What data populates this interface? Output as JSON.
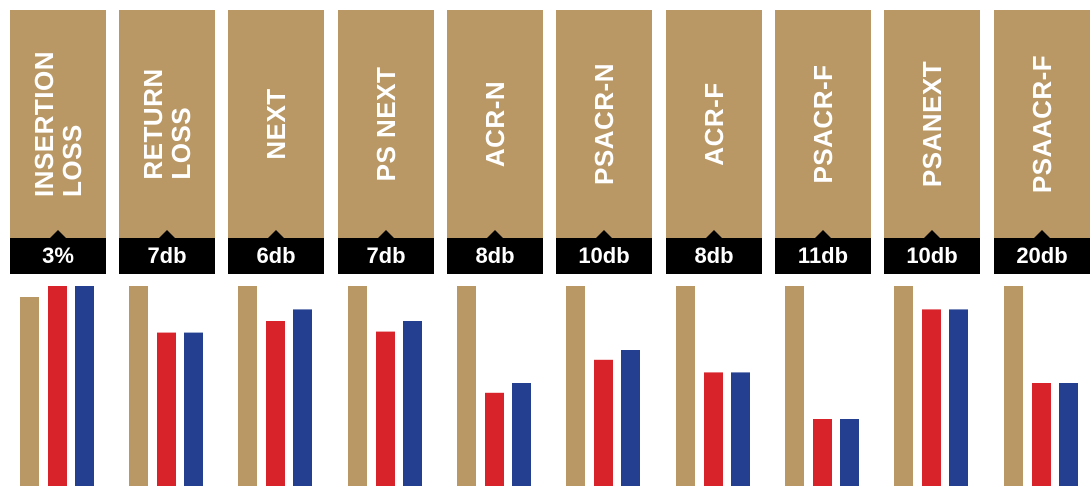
{
  "colors": {
    "gold": "#B99866",
    "red": "#D8232A",
    "blue": "#243F8F",
    "black": "#000000",
    "text_on_gold": "#FFFFFF"
  },
  "chart_data": {
    "type": "bar",
    "ylim": [
      0,
      100
    ],
    "grid": false,
    "legend": "none",
    "categories": [
      "INSERTION\nLOSS",
      "RETURN\nLOSS",
      "NEXT",
      "PS NEXT",
      "ACR-N",
      "PSACR-N",
      "ACR-F",
      "PSACR-F",
      "PSANEXT",
      "PSAACR-F"
    ],
    "value_labels": [
      "3%",
      "7db",
      "6db",
      "7db",
      "8db",
      "10db",
      "8db",
      "11db",
      "10db",
      "20db"
    ],
    "series": [
      {
        "color": "#B99866",
        "values": [
          94.5,
          100,
          100,
          100,
          100,
          100,
          100,
          100,
          100,
          100
        ]
      },
      {
        "color": "#D8232A",
        "values": [
          100,
          76.7,
          82.5,
          77.2,
          46.6,
          63.1,
          56.8,
          33.5,
          88.3,
          51.5
        ]
      },
      {
        "color": "#243F8F",
        "values": [
          100,
          76.7,
          88.3,
          82.5,
          51.5,
          68.0,
          56.8,
          33.5,
          88.3,
          51.5
        ]
      }
    ]
  }
}
